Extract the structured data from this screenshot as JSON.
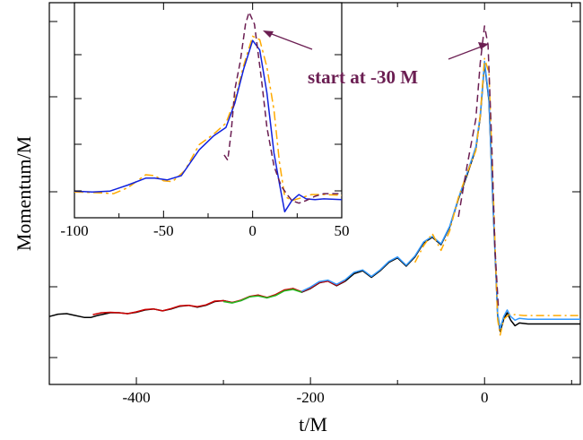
{
  "chart_data": {
    "type": "line",
    "xlabel": "t/M",
    "ylabel": "Momentum/M",
    "xlim": [
      -500,
      110
    ],
    "x_ticks": [
      "-400",
      "-200",
      "0"
    ],
    "main_series": [
      {
        "color": "#000000",
        "dash": "",
        "points": [
          [
            -500,
            0.08
          ],
          [
            -490,
            0.105
          ],
          [
            -480,
            0.11
          ],
          [
            -470,
            0.09
          ],
          [
            -460,
            0.07
          ],
          [
            -452,
            0.07
          ],
          [
            -445,
            0.09
          ],
          [
            -430,
            0.12
          ],
          [
            -420,
            0.12
          ],
          [
            -410,
            0.11
          ],
          [
            -400,
            0.125
          ],
          [
            -390,
            0.15
          ],
          [
            -380,
            0.16
          ],
          [
            -370,
            0.14
          ],
          [
            -360,
            0.16
          ],
          [
            -350,
            0.19
          ],
          [
            -340,
            0.2
          ],
          [
            -330,
            0.18
          ],
          [
            -320,
            0.2
          ],
          [
            -310,
            0.24
          ],
          [
            -300,
            0.25
          ],
          [
            -290,
            0.23
          ],
          [
            -280,
            0.25
          ],
          [
            -270,
            0.29
          ],
          [
            -260,
            0.31
          ],
          [
            -250,
            0.28
          ],
          [
            -240,
            0.31
          ],
          [
            -230,
            0.36
          ],
          [
            -220,
            0.38
          ],
          [
            -210,
            0.34
          ],
          [
            -200,
            0.38
          ],
          [
            -190,
            0.44
          ],
          [
            -180,
            0.46
          ],
          [
            -170,
            0.41
          ],
          [
            -160,
            0.46
          ],
          [
            -150,
            0.54
          ],
          [
            -140,
            0.57
          ],
          [
            -130,
            0.5
          ],
          [
            -120,
            0.57
          ],
          [
            -110,
            0.66
          ],
          [
            -100,
            0.71
          ],
          [
            -90,
            0.62
          ],
          [
            -80,
            0.72
          ],
          [
            -70,
            0.87
          ],
          [
            -60,
            0.93
          ],
          [
            -50,
            0.85
          ],
          [
            -40,
            1.04
          ],
          [
            -30,
            1.34
          ],
          [
            -20,
            1.6
          ],
          [
            -10,
            1.88
          ],
          [
            -5,
            2.22
          ],
          [
            0,
            2.8
          ],
          [
            5,
            2.4
          ],
          [
            10,
            1.2
          ],
          [
            15,
            0.1
          ],
          [
            18,
            -0.08
          ],
          [
            22,
            0.05
          ],
          [
            26,
            0.12
          ],
          [
            30,
            0.04
          ],
          [
            35,
            -0.02
          ],
          [
            40,
            0.01
          ],
          [
            50,
            0
          ],
          [
            60,
            0
          ],
          [
            110,
            0
          ]
        ]
      },
      {
        "color": "#cc0000",
        "dash": "",
        "points": [
          [
            -450,
            0.1
          ],
          [
            -440,
            0.12
          ],
          [
            -430,
            0.125
          ],
          [
            -420,
            0.12
          ],
          [
            -410,
            0.11
          ],
          [
            -400,
            0.13
          ],
          [
            -390,
            0.155
          ],
          [
            -380,
            0.16
          ],
          [
            -370,
            0.14
          ],
          [
            -360,
            0.165
          ],
          [
            -350,
            0.195
          ],
          [
            -340,
            0.2
          ],
          [
            -330,
            0.185
          ],
          [
            -320,
            0.205
          ],
          [
            -310,
            0.245
          ],
          [
            -300,
            0.25
          ],
          [
            -290,
            0.23
          ],
          [
            -280,
            0.255
          ],
          [
            -270,
            0.295
          ],
          [
            -260,
            0.31
          ],
          [
            -250,
            0.285
          ],
          [
            -240,
            0.315
          ],
          [
            -230,
            0.365
          ],
          [
            -220,
            0.38
          ],
          [
            -210,
            0.345
          ],
          [
            -200,
            0.385
          ],
          [
            -190,
            0.445
          ],
          [
            -180,
            0.46
          ],
          [
            -170,
            0.415
          ],
          [
            -160,
            0.465
          ]
        ]
      },
      {
        "color": "#22bb22",
        "dash": "",
        "points": [
          [
            -300,
            0.24
          ],
          [
            -290,
            0.225
          ],
          [
            -280,
            0.25
          ],
          [
            -270,
            0.29
          ],
          [
            -260,
            0.3
          ],
          [
            -250,
            0.28
          ],
          [
            -240,
            0.305
          ],
          [
            -230,
            0.355
          ],
          [
            -220,
            0.37
          ],
          [
            -210,
            0.34
          ]
        ]
      },
      {
        "color": "#3399ff",
        "dash": "",
        "points": [
          [
            -210,
            0.35
          ],
          [
            -200,
            0.395
          ],
          [
            -190,
            0.455
          ],
          [
            -180,
            0.47
          ],
          [
            -170,
            0.425
          ],
          [
            -160,
            0.475
          ],
          [
            -150,
            0.555
          ],
          [
            -140,
            0.58
          ],
          [
            -130,
            0.51
          ],
          [
            -120,
            0.58
          ],
          [
            -110,
            0.67
          ],
          [
            -100,
            0.72
          ],
          [
            -90,
            0.63
          ],
          [
            -80,
            0.73
          ],
          [
            -70,
            0.88
          ],
          [
            -60,
            0.94
          ],
          [
            -50,
            0.86
          ],
          [
            -40,
            1.05
          ],
          [
            -30,
            1.35
          ],
          [
            -20,
            1.62
          ],
          [
            -10,
            1.9
          ],
          [
            -5,
            2.24
          ],
          [
            0,
            2.82
          ],
          [
            5,
            2.42
          ],
          [
            10,
            1.22
          ],
          [
            15,
            0.12
          ],
          [
            18,
            -0.05
          ],
          [
            22,
            0.08
          ],
          [
            26,
            0.15
          ],
          [
            30,
            0.08
          ],
          [
            35,
            0.04
          ],
          [
            40,
            0.06
          ],
          [
            50,
            0.05
          ],
          [
            110,
            0.05
          ]
        ]
      },
      {
        "color": "#ffaa00",
        "dash": "9 4 2 4",
        "points": [
          [
            -80,
            0.66
          ],
          [
            -70,
            0.84
          ],
          [
            -60,
            0.97
          ],
          [
            -50,
            0.79
          ],
          [
            -40,
            1.0
          ],
          [
            -30,
            1.36
          ],
          [
            -20,
            1.62
          ],
          [
            -10,
            1.86
          ],
          [
            -5,
            2.24
          ],
          [
            0,
            2.85
          ],
          [
            5,
            2.7
          ],
          [
            10,
            1.4
          ],
          [
            15,
            0.05
          ],
          [
            18,
            -0.12
          ],
          [
            22,
            0.05
          ],
          [
            28,
            0.1
          ],
          [
            35,
            0.1
          ],
          [
            45,
            0.09
          ],
          [
            110,
            0.09
          ]
        ]
      },
      {
        "color": "#6b1e52",
        "dash": "8 5",
        "points": [
          [
            -30,
            1.15
          ],
          [
            -20,
            1.7
          ],
          [
            -10,
            2.2
          ],
          [
            -5,
            2.8
          ],
          [
            0,
            3.2
          ],
          [
            4,
            3.0
          ],
          [
            8,
            2.0
          ],
          [
            12,
            0.8
          ],
          [
            16,
            0.15
          ]
        ]
      }
    ],
    "inset": {
      "xlim": [
        -100,
        50
      ],
      "x_ticks": [
        "-100",
        "-50",
        "0",
        "50"
      ],
      "series": [
        {
          "color": "#ffaa00",
          "dash": "10 4 3 4",
          "points": [
            [
              -100,
              0.15
            ],
            [
              -85,
              0.14
            ],
            [
              -78,
              0.13
            ],
            [
              -70,
              0.2
            ],
            [
              -60,
              0.35
            ],
            [
              -55,
              0.34
            ],
            [
              -50,
              0.28
            ],
            [
              -45,
              0.27
            ],
            [
              -38,
              0.4
            ],
            [
              -30,
              0.7
            ],
            [
              -22,
              0.82
            ],
            [
              -15,
              0.95
            ],
            [
              -10,
              1.22
            ],
            [
              -5,
              1.62
            ],
            [
              0,
              1.96
            ],
            [
              4,
              1.92
            ],
            [
              8,
              1.6
            ],
            [
              12,
              1.1
            ],
            [
              15,
              0.5
            ],
            [
              18,
              0.1
            ],
            [
              22,
              0.05
            ],
            [
              27,
              0.08
            ],
            [
              33,
              0.12
            ],
            [
              40,
              0.12
            ],
            [
              50,
              0.11
            ]
          ]
        },
        {
          "color": "#1122dd",
          "dash": "",
          "points": [
            [
              -100,
              0.16
            ],
            [
              -90,
              0.15
            ],
            [
              -80,
              0.16
            ],
            [
              -70,
              0.23
            ],
            [
              -60,
              0.31
            ],
            [
              -55,
              0.31
            ],
            [
              -48,
              0.29
            ],
            [
              -40,
              0.34
            ],
            [
              -30,
              0.64
            ],
            [
              -22,
              0.8
            ],
            [
              -15,
              0.9
            ],
            [
              -10,
              1.18
            ],
            [
              -5,
              1.58
            ],
            [
              0,
              1.91
            ],
            [
              4,
              1.8
            ],
            [
              8,
              1.3
            ],
            [
              12,
              0.6
            ],
            [
              15,
              0.25
            ],
            [
              18,
              -0.08
            ],
            [
              22,
              0.05
            ],
            [
              26,
              0.12
            ],
            [
              30,
              0.07
            ],
            [
              35,
              0.06
            ],
            [
              40,
              0.07
            ],
            [
              50,
              0.06
            ]
          ]
        },
        {
          "color": "#6b1e52",
          "dash": "7 4",
          "points": [
            [
              -16,
              0.58
            ],
            [
              -14,
              0.52
            ],
            [
              -12,
              0.85
            ],
            [
              -10,
              1.34
            ],
            [
              -7,
              1.66
            ],
            [
              -4,
              2.1
            ],
            [
              -2,
              2.24
            ],
            [
              1,
              2.1
            ],
            [
              5,
              1.45
            ],
            [
              8,
              0.9
            ],
            [
              12,
              0.45
            ],
            [
              16,
              0.22
            ],
            [
              19,
              0.13
            ],
            [
              22,
              0.05
            ],
            [
              26,
              0.02
            ],
            [
              30,
              0.05
            ],
            [
              35,
              0.1
            ],
            [
              40,
              0.13
            ],
            [
              50,
              0.13
            ]
          ]
        }
      ]
    },
    "annotation": "start at -30 M"
  }
}
